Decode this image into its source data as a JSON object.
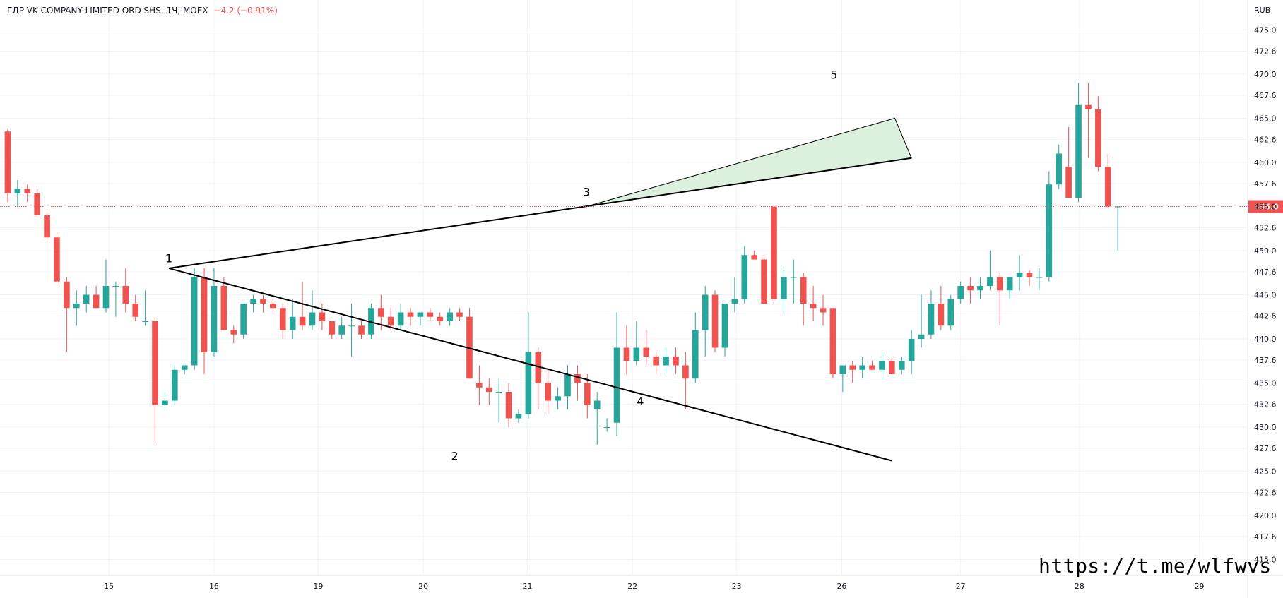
{
  "header": {
    "symbol": "ГДР VK COMPANY LIMITED ORD SHS",
    "interval": "1Ч",
    "exchange": "MOEX",
    "change": "−4.2 (−0.91%)"
  },
  "watermark": "https://t.me/wlfwvs",
  "colors": {
    "up": "#26a69a",
    "down": "#ef5350",
    "grid": "#f0f3fa",
    "price_line": "#ef5350",
    "wedge_fill": "#d6eed7"
  },
  "chart_data": {
    "type": "candlestick",
    "currency": "RUB",
    "current_price": "455.0",
    "y_ticks": [
      "475.0",
      "472.6",
      "470.0",
      "467.6",
      "465.0",
      "462.6",
      "460.0",
      "457.6",
      "455.0",
      "452.6",
      "450.0",
      "447.6",
      "445.0",
      "442.6",
      "440.0",
      "437.6",
      "435.0",
      "432.6",
      "430.0",
      "427.6",
      "425.0",
      "422.6",
      "420.0",
      "417.6",
      "415.0"
    ],
    "ylim": [
      413.2,
      478.4
    ],
    "x_ticks": [
      {
        "label": "15",
        "i": 10.8
      },
      {
        "label": "16",
        "i": 21.5
      },
      {
        "label": "19",
        "i": 32.1
      },
      {
        "label": "20",
        "i": 42.8
      },
      {
        "label": "21",
        "i": 53.4
      },
      {
        "label": "22",
        "i": 64.1
      },
      {
        "label": "23",
        "i": 74.7
      },
      {
        "label": "26",
        "i": 85.4
      },
      {
        "label": "27",
        "i": 97.5
      },
      {
        "label": "28",
        "i": 109.6
      },
      {
        "label": "29",
        "i": 121.8
      }
    ],
    "candles": [
      [
        463.5,
        463.8,
        455.5,
        456.5
      ],
      [
        456.5,
        458.0,
        455.0,
        457.0
      ],
      [
        457.0,
        457.5,
        455.5,
        456.5
      ],
      [
        456.5,
        457.0,
        454.0,
        454.0
      ],
      [
        454.0,
        454.5,
        451.0,
        451.5
      ],
      [
        451.5,
        452.0,
        446.0,
        446.5
      ],
      [
        446.5,
        447.0,
        438.5,
        443.5
      ],
      [
        443.5,
        445.5,
        441.5,
        444.0
      ],
      [
        444.0,
        446.0,
        443.0,
        445.0
      ],
      [
        445.0,
        446.0,
        443.5,
        443.5
      ],
      [
        443.5,
        449.0,
        443.0,
        446.0
      ],
      [
        446.0,
        446.5,
        442.5,
        446.0
      ],
      [
        446.0,
        448.0,
        443.0,
        444.0
      ],
      [
        444.0,
        445.0,
        442.0,
        442.5
      ],
      [
        442.0,
        445.5,
        441.5,
        442.0
      ],
      [
        442.0,
        442.5,
        428.0,
        432.5
      ],
      [
        432.5,
        434.0,
        432.0,
        433.0
      ],
      [
        433.0,
        437.0,
        432.5,
        436.5
      ],
      [
        436.5,
        437.0,
        436.0,
        437.0
      ],
      [
        437.0,
        448.0,
        436.5,
        447.0
      ],
      [
        447.0,
        448.0,
        436.0,
        438.5
      ],
      [
        438.5,
        448.0,
        438.0,
        446.0
      ],
      [
        446.0,
        447.0,
        441.0,
        441.0
      ],
      [
        441.0,
        441.5,
        439.5,
        440.5
      ],
      [
        440.5,
        444.0,
        440.0,
        444.0
      ],
      [
        444.0,
        445.0,
        443.0,
        444.5
      ],
      [
        444.5,
        445.0,
        443.0,
        444.0
      ],
      [
        444.0,
        444.5,
        443.0,
        443.5
      ],
      [
        443.5,
        444.0,
        440.0,
        441.0
      ],
      [
        441.0,
        444.5,
        440.0,
        442.5
      ],
      [
        442.5,
        446.5,
        441.0,
        441.5
      ],
      [
        441.5,
        445.5,
        441.0,
        443.0
      ],
      [
        443.0,
        444.0,
        441.0,
        442.0
      ],
      [
        442.0,
        442.0,
        440.0,
        440.5
      ],
      [
        440.5,
        442.5,
        440.0,
        441.5
      ],
      [
        441.5,
        444.0,
        438.0,
        441.5
      ],
      [
        441.5,
        442.0,
        440.0,
        440.5
      ],
      [
        440.5,
        444.0,
        440.0,
        443.5
      ],
      [
        443.5,
        445.0,
        441.0,
        442.5
      ],
      [
        442.5,
        443.5,
        441.0,
        441.5
      ],
      [
        441.5,
        444.0,
        441.0,
        443.0
      ],
      [
        443.0,
        443.5,
        441.5,
        442.5
      ],
      [
        442.5,
        443.0,
        441.5,
        443.0
      ],
      [
        443.0,
        443.5,
        442.0,
        442.5
      ],
      [
        442.5,
        443.0,
        441.5,
        442.0
      ],
      [
        442.0,
        443.5,
        441.5,
        443.0
      ],
      [
        443.0,
        443.5,
        442.0,
        442.5
      ],
      [
        442.5,
        443.5,
        435.5,
        435.5
      ],
      [
        435.0,
        437.0,
        432.5,
        434.5
      ],
      [
        434.5,
        435.5,
        432.5,
        434.0
      ],
      [
        434.0,
        435.5,
        430.5,
        434.0
      ],
      [
        434.0,
        435.0,
        430.0,
        431.0
      ],
      [
        431.0,
        432.0,
        430.5,
        431.5
      ],
      [
        431.5,
        443.0,
        431.0,
        438.5
      ],
      [
        438.5,
        439.0,
        432.0,
        435.0
      ],
      [
        435.0,
        436.5,
        431.5,
        433.0
      ],
      [
        433.0,
        434.5,
        432.0,
        433.5
      ],
      [
        433.5,
        437.0,
        432.0,
        436.0
      ],
      [
        436.0,
        437.0,
        433.0,
        435.0
      ],
      [
        435.0,
        436.0,
        431.0,
        432.5
      ],
      [
        432.0,
        434.0,
        428.0,
        433.0
      ],
      [
        430.0,
        431.0,
        429.5,
        430.0
      ],
      [
        430.5,
        443.0,
        429.0,
        439.0
      ],
      [
        439.0,
        441.5,
        436.0,
        437.5
      ],
      [
        437.5,
        442.0,
        437.0,
        439.0
      ],
      [
        439.0,
        441.0,
        437.0,
        438.0
      ],
      [
        438.0,
        438.5,
        436.0,
        437.0
      ],
      [
        437.0,
        439.0,
        436.0,
        438.0
      ],
      [
        438.0,
        439.0,
        436.0,
        437.0
      ],
      [
        437.0,
        438.5,
        432.0,
        435.5
      ],
      [
        435.5,
        443.0,
        435.0,
        441.0
      ],
      [
        441.0,
        446.0,
        438.0,
        445.0
      ],
      [
        445.0,
        445.5,
        438.5,
        439.0
      ],
      [
        439.0,
        443.5,
        438.0,
        444.0
      ],
      [
        444.0,
        447.0,
        443.0,
        444.5
      ],
      [
        444.5,
        450.5,
        444.0,
        449.5
      ],
      [
        449.5,
        450.0,
        449.0,
        449.0
      ],
      [
        449.0,
        449.5,
        444.0,
        444.0
      ],
      [
        455.0,
        455.0,
        444.0,
        444.5
      ],
      [
        444.5,
        448.0,
        443.0,
        447.0
      ],
      [
        447.0,
        449.0,
        444.0,
        447.0
      ],
      [
        447.0,
        447.5,
        441.5,
        444.0
      ],
      [
        444.0,
        446.0,
        442.0,
        443.5
      ],
      [
        443.5,
        445.0,
        441.5,
        443.0
      ],
      [
        443.5,
        443.5,
        435.5,
        436.0
      ],
      [
        436.0,
        437.0,
        434.0,
        437.0
      ],
      [
        437.0,
        437.5,
        435.0,
        436.5
      ],
      [
        436.5,
        438.0,
        435.5,
        437.0
      ],
      [
        437.0,
        437.5,
        436.5,
        436.5
      ],
      [
        436.5,
        438.5,
        435.5,
        437.5
      ],
      [
        437.5,
        438.0,
        436.0,
        436.0
      ],
      [
        436.5,
        438.0,
        436.0,
        437.5
      ],
      [
        437.5,
        441.0,
        436.0,
        440.0
      ],
      [
        440.0,
        445.0,
        439.0,
        440.5
      ],
      [
        440.5,
        445.5,
        440.0,
        444.0
      ],
      [
        444.0,
        446.0,
        441.0,
        441.5
      ],
      [
        441.5,
        445.0,
        441.0,
        444.5
      ],
      [
        444.5,
        446.5,
        444.0,
        446.0
      ],
      [
        446.0,
        447.0,
        444.0,
        445.5
      ],
      [
        445.5,
        447.0,
        444.5,
        446.0
      ],
      [
        446.0,
        450.0,
        445.5,
        447.0
      ],
      [
        447.0,
        447.5,
        441.5,
        445.5
      ],
      [
        445.5,
        447.0,
        444.5,
        447.0
      ],
      [
        447.0,
        449.5,
        445.5,
        447.5
      ],
      [
        447.5,
        447.8,
        446.0,
        447.0
      ],
      [
        447.0,
        448.0,
        445.5,
        447.0
      ],
      [
        447.0,
        459.0,
        446.5,
        457.5
      ],
      [
        457.5,
        462.0,
        457.0,
        461.0
      ],
      [
        459.5,
        464.0,
        456.0,
        456.0
      ],
      [
        456.0,
        469.0,
        455.5,
        466.5
      ],
      [
        466.5,
        469.0,
        460.5,
        466.0
      ],
      [
        466.0,
        467.5,
        459.0,
        459.5
      ],
      [
        459.5,
        461.0,
        455.5,
        455.0
      ],
      [
        455.0,
        455.0,
        450.0,
        455.0
      ]
    ],
    "bars_per_day": 10.68,
    "annotations": [
      {
        "label": "1",
        "i": 16.9,
        "p": 448.7
      },
      {
        "label": "2",
        "i": 46.0,
        "p": 426.3
      },
      {
        "label": "3",
        "i": 59.4,
        "p": 456.2
      },
      {
        "label": "4",
        "i": 64.9,
        "p": 432.5
      },
      {
        "label": "5",
        "i": 84.6,
        "p": 469.5
      }
    ],
    "trendlines": [
      {
        "i1": 16.9,
        "p1": 448.0,
        "i2": 92.5,
        "p2": 460.5
      },
      {
        "i1": 16.9,
        "p1": 448.0,
        "i2": 90.5,
        "p2": 426.2
      }
    ],
    "wedge": {
      "points": [
        [
          59.4,
          455.0
        ],
        [
          90.8,
          465.0
        ],
        [
          92.5,
          460.5
        ]
      ]
    }
  }
}
